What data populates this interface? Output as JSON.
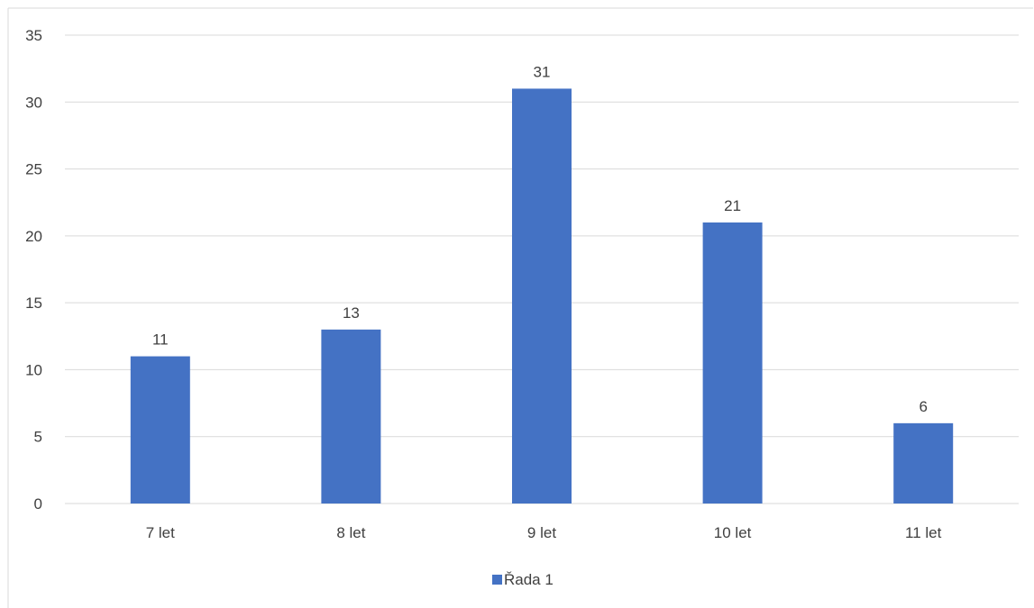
{
  "chart_data": {
    "type": "bar",
    "categories": [
      "7 let",
      "8 let",
      "9 let",
      "10 let",
      "11 let"
    ],
    "series": [
      {
        "name": "Řada 1",
        "values": [
          11,
          13,
          31,
          21,
          6
        ],
        "color": "#4472c4"
      }
    ],
    "ylim": [
      0,
      35
    ],
    "yticks": [
      0,
      5,
      10,
      15,
      20,
      25,
      30,
      35
    ],
    "grid": true,
    "legend_position": "bottom",
    "data_labels": true,
    "colors": {
      "bar": "#4472c4",
      "grid": "#d9d9d9",
      "text": "#404040",
      "border": "#d9d9d9"
    }
  }
}
